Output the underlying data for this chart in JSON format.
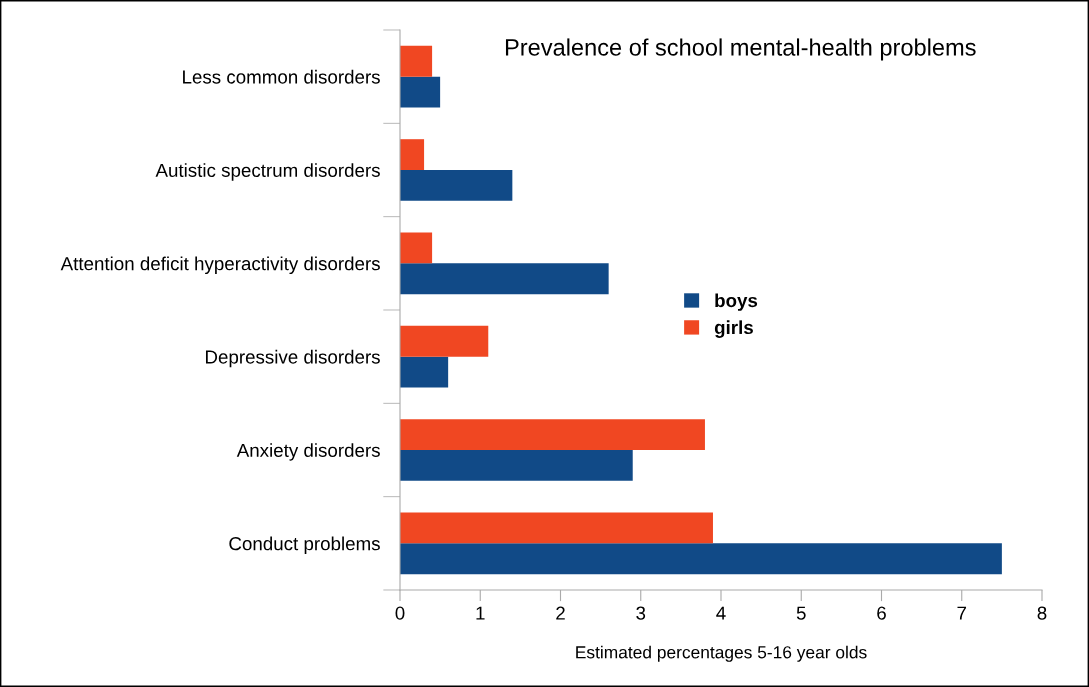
{
  "chart_data": {
    "type": "bar",
    "orientation": "horizontal",
    "title": "Prevalence of school mental-health problems",
    "xlabel": "Estimated percentages 5-16 year olds",
    "categories": [
      "Less common disorders",
      "Autistic spectrum disorders",
      "Attention deficit hyperactivity disorders",
      "Depressive disorders",
      "Anxiety disorders",
      "Conduct problems"
    ],
    "series": [
      {
        "name": "boys",
        "color": "#114a87",
        "values": [
          0.5,
          1.4,
          2.6,
          0.6,
          2.9,
          7.5
        ]
      },
      {
        "name": "girls",
        "color": "#f04722",
        "values": [
          0.4,
          0.3,
          0.4,
          1.1,
          3.8,
          3.9
        ]
      }
    ],
    "xlim": [
      0,
      8
    ],
    "xticks": [
      0,
      1,
      2,
      3,
      4,
      5,
      6,
      7,
      8
    ],
    "grid": false,
    "legend": "center"
  }
}
